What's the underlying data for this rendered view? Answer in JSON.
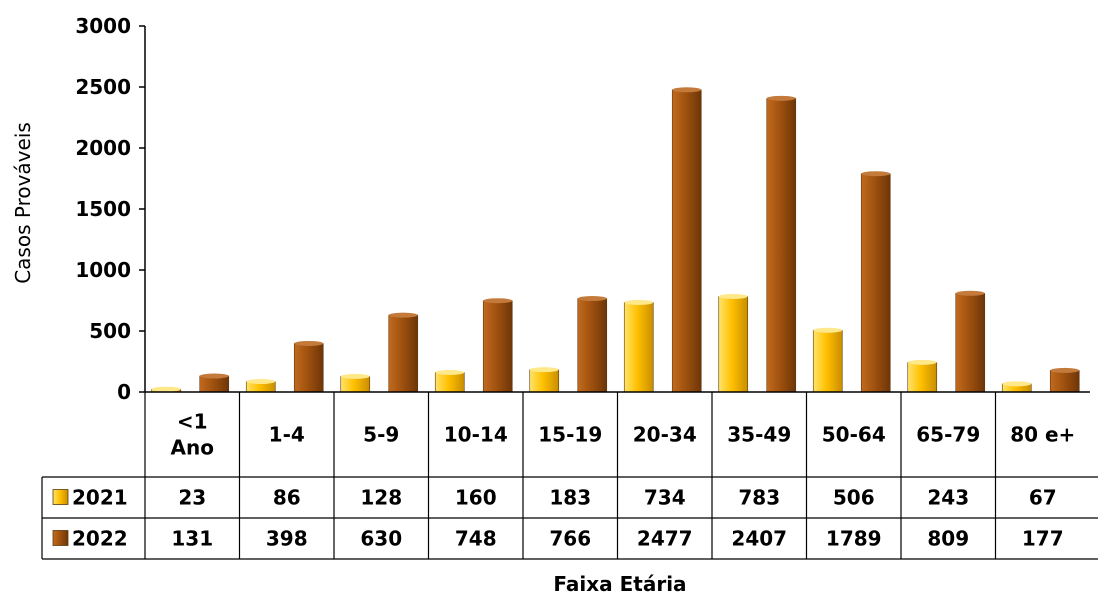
{
  "chart_data": {
    "type": "bar",
    "title": "",
    "xlabel": "Faixa Etária",
    "ylabel": "Casos Prováveis",
    "ylim": [
      0,
      3000
    ],
    "yticks": [
      0,
      500,
      1000,
      1500,
      2000,
      2500,
      3000
    ],
    "categories": [
      [
        "<1",
        "Ano"
      ],
      [
        "1-4"
      ],
      [
        "5-9"
      ],
      [
        "10-14"
      ],
      [
        "15-19"
      ],
      [
        "20-34"
      ],
      [
        "35-49"
      ],
      [
        "50-64"
      ],
      [
        "65-79"
      ],
      [
        "80 e+"
      ]
    ],
    "series": [
      {
        "name": "2021",
        "color": "#FFC000",
        "values": [
          23,
          86,
          128,
          160,
          183,
          734,
          783,
          506,
          243,
          67
        ]
      },
      {
        "name": "2022",
        "color": "#A0520F",
        "values": [
          131,
          398,
          630,
          748,
          766,
          2477,
          2407,
          1789,
          809,
          177
        ]
      }
    ],
    "grid": false,
    "legend": "data-table"
  }
}
